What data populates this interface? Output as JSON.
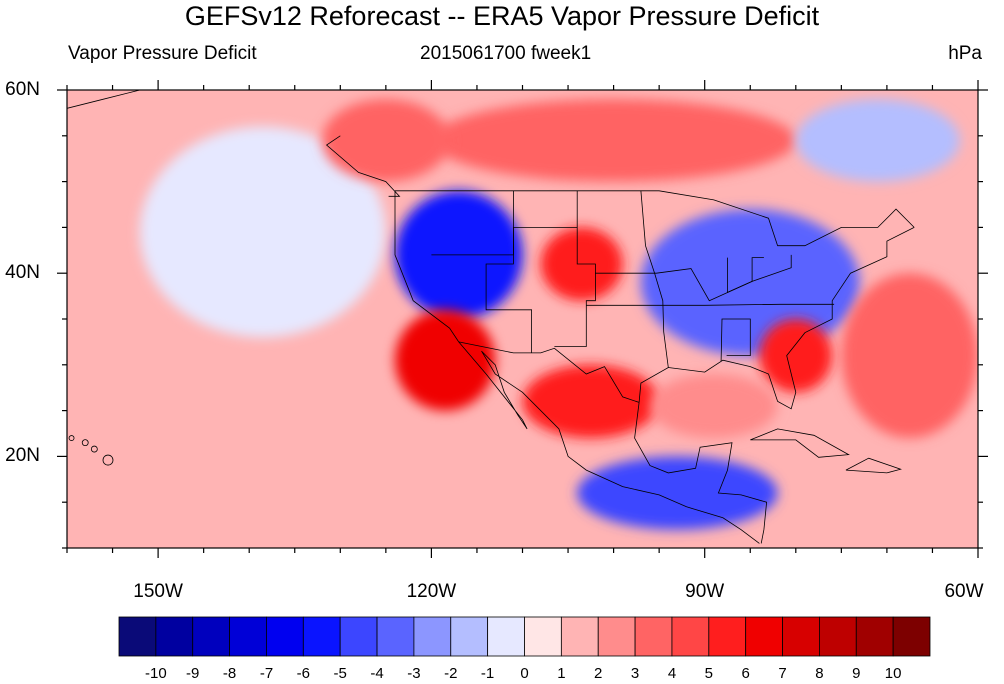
{
  "title": "GEFSv12 Reforecast -- ERA5 Vapor Pressure Deficit",
  "left_string": "Vapor Pressure Deficit",
  "center_string": "2015061700 fweek1",
  "right_string": "hPa",
  "map": {
    "projection": "cylindrical equidistant",
    "lon_range": [
      -160,
      -60
    ],
    "lat_range": [
      10,
      60
    ],
    "lat_ticks": [
      {
        "value": 60,
        "label": "60N"
      },
      {
        "value": 40,
        "label": "40N"
      },
      {
        "value": 20,
        "label": "20N"
      }
    ],
    "lon_ticks": [
      {
        "value": -150,
        "label": "150W"
      },
      {
        "value": -120,
        "label": "120W"
      },
      {
        "value": -90,
        "label": "90W"
      },
      {
        "value": -60,
        "label": "60W"
      }
    ]
  },
  "colorbar": {
    "colors": [
      "#0a0a78",
      "#0000a0",
      "#0000be",
      "#0000d7",
      "#0000f0",
      "#0a14ff",
      "#3c46ff",
      "#5a64ff",
      "#8c96ff",
      "#b4beff",
      "#e6e8ff",
      "#ffe6e6",
      "#ffb4b4",
      "#ff8c8c",
      "#ff6464",
      "#ff4646",
      "#ff1e1e",
      "#f00000",
      "#d70000",
      "#be0000",
      "#a00000",
      "#7d0000"
    ],
    "labels": [
      "-10",
      "-9",
      "-8",
      "-7",
      "-6",
      "-5",
      "-4",
      "-3",
      "-2",
      "-1",
      "0",
      "1",
      "2",
      "3",
      "4",
      "5",
      "6",
      "7",
      "8",
      "9",
      "10"
    ]
  },
  "anomaly_regions": [
    {
      "name": "pacific-background",
      "level": "1",
      "lon": [
        -160,
        -60
      ],
      "lat": [
        10,
        60
      ]
    },
    {
      "name": "west-pacific-light-blue",
      "level": "-1",
      "lon": [
        -152,
        -125
      ],
      "lat": [
        33,
        56
      ]
    },
    {
      "name": "northwest-us-blue",
      "level": "-6",
      "lon": [
        -124,
        -110
      ],
      "lat": [
        35,
        49
      ]
    },
    {
      "name": "great-plains-red",
      "level": "5",
      "lon": [
        -108,
        -99
      ],
      "lat": [
        37,
        45
      ]
    },
    {
      "name": "california-red",
      "level": "6",
      "lon": [
        -124,
        -113
      ],
      "lat": [
        25,
        36
      ]
    },
    {
      "name": "mexico-red",
      "level": "5",
      "lon": [
        -110,
        -95
      ],
      "lat": [
        22,
        30
      ]
    },
    {
      "name": "central-us-blue",
      "level": "-4",
      "lon": [
        -97,
        -73
      ],
      "lat": [
        31,
        47
      ]
    },
    {
      "name": "southeast-us-red",
      "level": "5",
      "lon": [
        -84,
        -76
      ],
      "lat": [
        27,
        35
      ]
    },
    {
      "name": "canada-north-red",
      "level": "3",
      "lon": [
        -120,
        -80
      ],
      "lat": [
        50,
        59
      ]
    },
    {
      "name": "hudson-blue",
      "level": "-2",
      "lon": [
        -80,
        -62
      ],
      "lat": [
        50,
        59
      ]
    },
    {
      "name": "central-america-blue",
      "level": "-5",
      "lon": [
        -104,
        -82
      ],
      "lat": [
        12,
        20
      ]
    },
    {
      "name": "gulf-mexico-pink",
      "level": "2",
      "lon": [
        -96,
        -82
      ],
      "lat": [
        22,
        29
      ]
    },
    {
      "name": "atlantic-red",
      "level": "3",
      "lon": [
        -75,
        -60
      ],
      "lat": [
        22,
        40
      ]
    },
    {
      "name": "north-pacific-red",
      "level": "3",
      "lon": [
        -132,
        -118
      ],
      "lat": [
        50,
        59
      ]
    }
  ]
}
